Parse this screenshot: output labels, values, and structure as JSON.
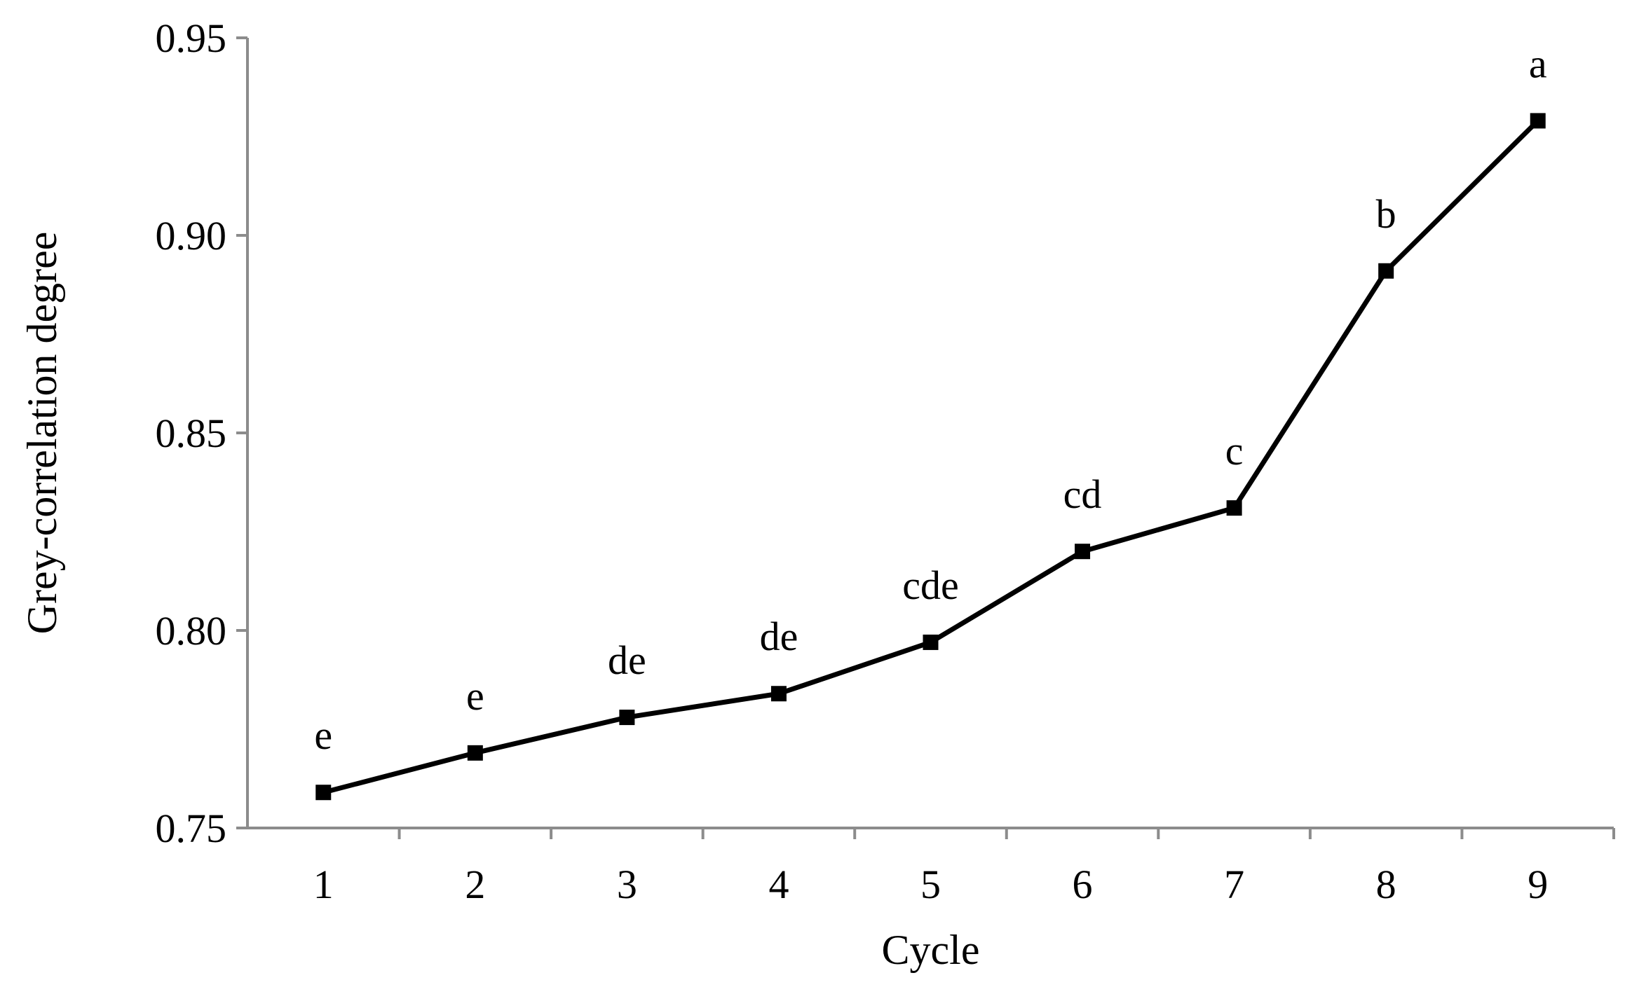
{
  "chart_data": {
    "type": "line",
    "title": "",
    "xlabel": "Cycle",
    "ylabel": "Grey-correlation degree",
    "categories": [
      "1",
      "2",
      "3",
      "4",
      "5",
      "6",
      "7",
      "8",
      "9"
    ],
    "series": [
      {
        "values": [
          0.759,
          0.769,
          0.778,
          0.784,
          0.797,
          0.82,
          0.831,
          0.891,
          0.929
        ],
        "labels": [
          "e",
          "e",
          "de",
          "de",
          "cde",
          "cd",
          "c",
          "b",
          "a"
        ]
      }
    ],
    "ylim": [
      0.75,
      0.95
    ],
    "yticks": [
      0.75,
      0.8,
      0.85,
      0.9,
      0.95
    ],
    "ytick_labels": [
      "0.75",
      "0.80",
      "0.85",
      "0.90",
      "0.95"
    ],
    "grid": false,
    "legend": "none",
    "colors": {
      "line": "#000000",
      "axis": "#8c8c8c"
    }
  }
}
